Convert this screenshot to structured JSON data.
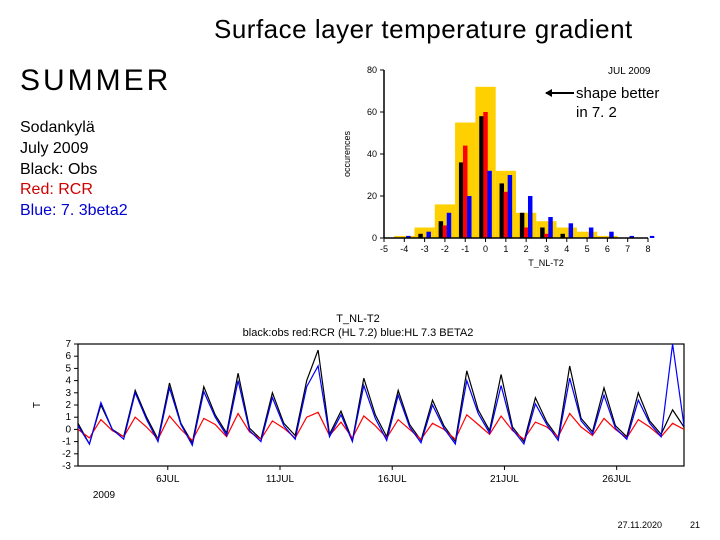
{
  "title": "Surface layer temperature gradient",
  "summer_label": "SUMMER",
  "legend": {
    "l1": "Sodankylä",
    "l2": "July 2009",
    "l3": "Black: Obs",
    "l4": "Red: RCR",
    "l5": "Blue: 7. 3beta2"
  },
  "annotation": {
    "line1": "shape better",
    "line2": "in 7. 2"
  },
  "footer": {
    "date": "27.11.2020",
    "page": "21"
  },
  "hist": {
    "type": "histogram",
    "title": "JUL 2009",
    "title_fontsize": 10,
    "background_color": "#ffffff",
    "xlabel": "T_NL-T2",
    "ylabel": "occurences",
    "label_fontsize": 9,
    "xlim": [
      -5,
      8
    ],
    "ylim": [
      0,
      80
    ],
    "ytick_step": 20,
    "xticks": [
      -5,
      -4,
      -3,
      -2,
      -1,
      0,
      1,
      2,
      3,
      4,
      5,
      6,
      7,
      8
    ],
    "axis_color": "#000000",
    "bar_series": [
      {
        "name": "7.2",
        "color": "#ffd000",
        "width": 1.0,
        "offset": 0,
        "values": {
          "-4": 1,
          "-3": 5,
          "-2": 16,
          "-1": 55,
          "0": 72,
          "1": 32,
          "2": 12,
          "3": 8,
          "4": 5,
          "5": 3,
          "6": 1
        }
      },
      {
        "name": "Obs",
        "color": "#000000",
        "width": 0.22,
        "offset": -0.2,
        "values": {
          "-3": 2,
          "-2": 8,
          "-1": 36,
          "0": 58,
          "1": 26,
          "2": 12,
          "3": 5,
          "4": 2
        }
      },
      {
        "name": "RCR",
        "color": "#ff0000",
        "width": 0.22,
        "offset": 0,
        "values": {
          "-2": 6,
          "-1": 44,
          "0": 60,
          "1": 22,
          "2": 5,
          "3": 2
        }
      },
      {
        "name": "7.3b2",
        "color": "#0000ff",
        "width": 0.22,
        "offset": 0.2,
        "values": {
          "-4": 1,
          "-3": 3,
          "-2": 12,
          "-1": 20,
          "0": 32,
          "1": 30,
          "2": 20,
          "3": 10,
          "4": 7,
          "5": 5,
          "6": 3,
          "7": 1,
          "8": 1
        }
      }
    ]
  },
  "ts": {
    "type": "line",
    "title_l1": "T_NL-T2",
    "title_l2": "black:obs  red:RCR (HL 7.2)  blue:HL 7.3 BETA2",
    "title_fontsize": 11,
    "background_color": "#ffffff",
    "ylabel": "T",
    "xlabel_year": "2009",
    "label_fontsize": 10,
    "xlim": [
      0,
      27
    ],
    "ylim": [
      -3,
      7
    ],
    "yticks": [
      -3,
      -2,
      -1,
      0,
      1,
      2,
      3,
      4,
      5,
      6,
      7
    ],
    "xticks": [
      {
        "at": 4,
        "label": "6JUL"
      },
      {
        "at": 9,
        "label": "11JUL"
      },
      {
        "at": 14,
        "label": "16JUL"
      },
      {
        "at": 19,
        "label": "21JUL"
      },
      {
        "at": 24,
        "label": "26JUL"
      }
    ],
    "axis_color": "#000000",
    "line_width": 1.2,
    "series": [
      {
        "name": "obs",
        "color": "#000000",
        "y": [
          0.5,
          -1.2,
          2.0,
          0.0,
          -0.6,
          3.2,
          1.0,
          -0.8,
          3.8,
          0.5,
          -1.1,
          3.5,
          1.2,
          -0.3,
          4.6,
          0.1,
          -0.8,
          3.0,
          0.5,
          -0.5,
          4.0,
          6.5,
          -0.4,
          1.5,
          -0.9,
          4.2,
          1.2,
          -0.6,
          3.2,
          0.4,
          -0.9,
          2.4,
          0.3,
          -1.0,
          4.8,
          1.6,
          -0.1,
          4.5,
          0.2,
          -1.0,
          2.6,
          0.6,
          -0.7,
          5.2,
          0.9,
          -0.2,
          3.4,
          0.3,
          -0.6,
          3.0,
          0.7,
          -0.4,
          1.6,
          0.2
        ]
      },
      {
        "name": "rcr",
        "color": "#ff0000",
        "y": [
          0.0,
          -0.7,
          0.8,
          -0.1,
          -0.6,
          1.0,
          0.2,
          -0.8,
          1.1,
          0.0,
          -0.9,
          0.9,
          0.4,
          -0.6,
          1.3,
          -0.2,
          -0.8,
          0.7,
          0.1,
          -0.7,
          1.0,
          1.4,
          -0.5,
          0.6,
          -0.7,
          1.1,
          0.3,
          -0.7,
          0.8,
          0.0,
          -0.8,
          0.5,
          0.0,
          -0.8,
          1.2,
          0.4,
          -0.4,
          1.1,
          -0.1,
          -0.8,
          0.6,
          0.2,
          -0.6,
          1.3,
          0.2,
          -0.5,
          0.9,
          0.0,
          -0.7,
          0.8,
          0.2,
          -0.6,
          0.5,
          0.0
        ]
      },
      {
        "name": "b2",
        "color": "#0000ff",
        "y": [
          0.3,
          -1.2,
          2.2,
          0.0,
          -0.8,
          3.0,
          0.8,
          -1.0,
          3.4,
          0.4,
          -1.3,
          3.1,
          1.0,
          -0.5,
          4.0,
          -0.1,
          -1.0,
          2.6,
          0.3,
          -0.8,
          3.5,
          5.2,
          -0.6,
          1.2,
          -1.0,
          3.6,
          0.9,
          -0.9,
          2.8,
          0.2,
          -1.1,
          2.0,
          0.1,
          -1.2,
          4.0,
          1.3,
          -0.3,
          3.6,
          0.0,
          -1.2,
          2.1,
          0.4,
          -0.9,
          4.2,
          0.7,
          -0.4,
          2.8,
          0.1,
          -0.8,
          2.4,
          0.5,
          -0.6,
          7.0,
          0.3
        ]
      }
    ]
  }
}
